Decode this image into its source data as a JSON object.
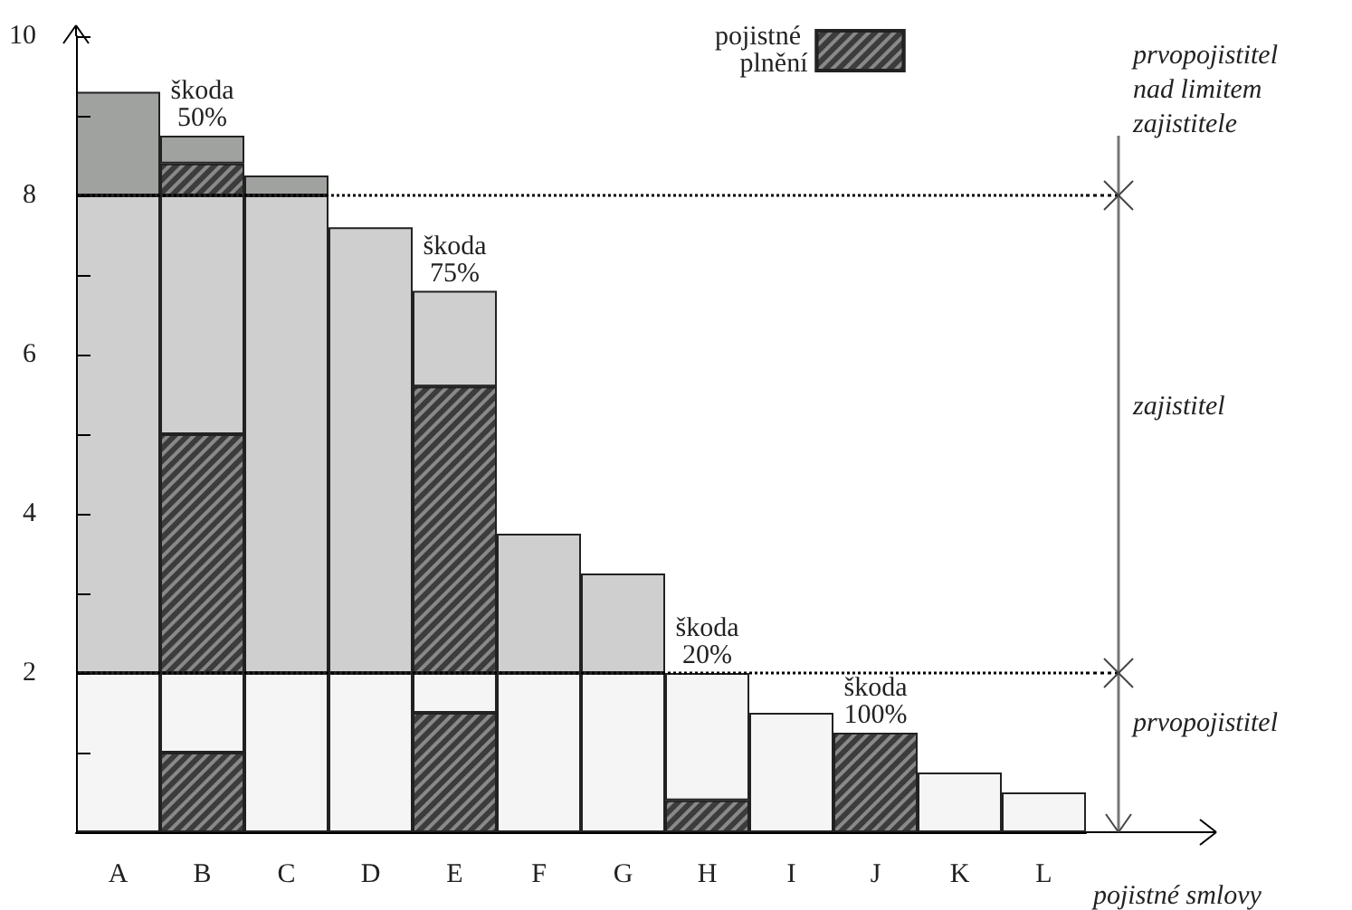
{
  "chart_data": {
    "type": "bar",
    "stacked": true,
    "xlabel": "pojistné smlovy",
    "categories": [
      "A",
      "B",
      "C",
      "D",
      "E",
      "F",
      "G",
      "H",
      "I",
      "J",
      "K",
      "L"
    ],
    "series": [
      {
        "name": "pojistné plnění",
        "color": "#3c3c3c",
        "values": [
          null,
          1,
          null,
          null,
          1.5,
          null,
          null,
          0.4,
          null,
          1.25,
          null,
          null
        ]
      },
      {
        "color": "#f4f5f4",
        "values": [
          2,
          1,
          2,
          2,
          0.5,
          2,
          2,
          1.6,
          1.5,
          null,
          0.75,
          0.5
        ]
      },
      {
        "color": "#3c3c3c",
        "values": [
          null,
          3,
          null,
          null,
          3.6,
          null,
          null,
          null,
          null,
          null,
          null,
          null
        ]
      },
      {
        "color": "#cfcfcf",
        "values": [
          6,
          3,
          6,
          5.6,
          1.2,
          1.75,
          1.25,
          null,
          null,
          null,
          null,
          null
        ]
      },
      {
        "color": "#3c3c3c",
        "values": [
          null,
          0.4,
          null,
          null,
          null,
          null,
          null,
          null,
          null,
          null,
          null,
          null
        ]
      },
      {
        "color": "#a0a2a0",
        "values": [
          1.3,
          0.35,
          0.25,
          null,
          null,
          null,
          null,
          null,
          null,
          null,
          null,
          null
        ]
      }
    ],
    "ylim": [
      0,
      10
    ],
    "yticks": [
      {
        "value": 1,
        "label": null
      },
      2,
      {
        "value": 3,
        "label": null
      },
      4,
      {
        "value": 5,
        "label": null
      },
      6,
      {
        "value": 7,
        "label": null
      },
      8,
      {
        "value": 9,
        "label": null
      },
      10
    ],
    "ref_lines": [
      {
        "axis": "y",
        "value": 8,
        "line_style": "dotted",
        "color": "#000000"
      },
      {
        "axis": "y",
        "value": 2,
        "line_style": "dotted",
        "color": "#000000"
      }
    ],
    "annotations": [
      {
        "text": "škoda 50%",
        "x": "B",
        "y": 8.75
      },
      {
        "text": "škoda 75%",
        "x": "E",
        "y": 6.8
      },
      {
        "text": "škoda 20%",
        "x": "H",
        "y": 2
      },
      {
        "text": "škoda 100%",
        "x": "J",
        "y": 1.25
      },
      "prvopojistitel nad limitem zajistitele",
      "zajistitel",
      "prvopojistitel"
    ],
    "grid": false,
    "legend": "top"
  }
}
